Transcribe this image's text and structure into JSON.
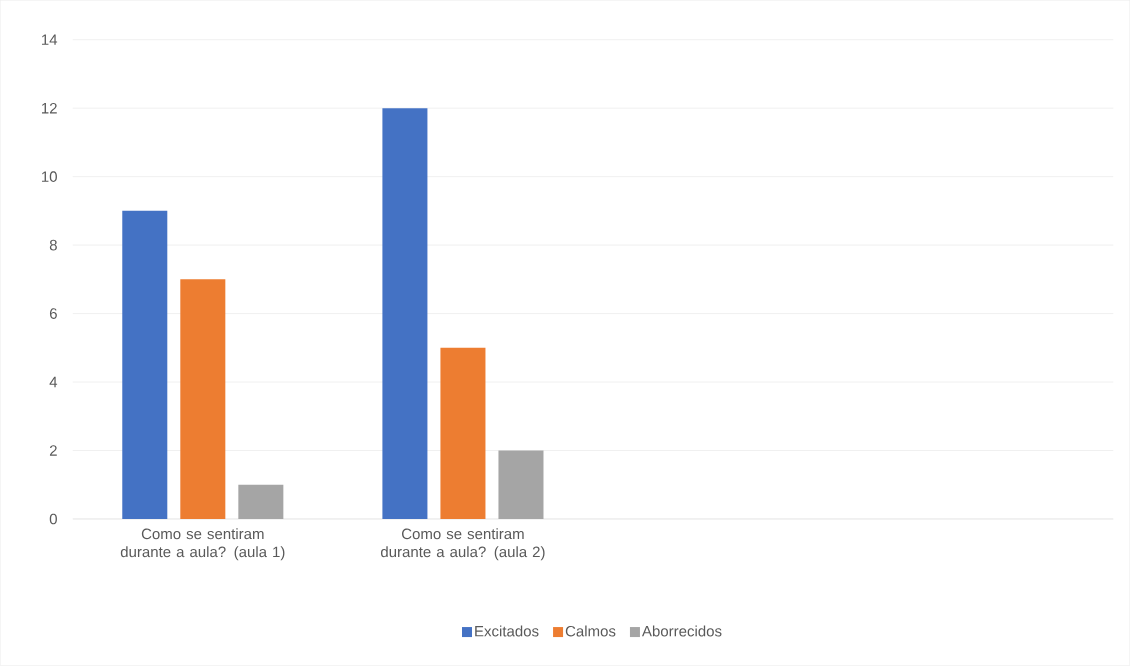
{
  "chart_data": {
    "type": "bar",
    "categories": [
      "Como se sentiram durante a aula? (aula 1)",
      "Como se sentiram durante a aula? (aula 2)",
      null,
      null
    ],
    "series": [
      {
        "name": "Excitados",
        "color": "#4472c4",
        "values": [
          9,
          12,
          null,
          null
        ]
      },
      {
        "name": "Calmos",
        "color": "#ed7d31",
        "values": [
          7,
          5,
          null,
          null
        ]
      },
      {
        "name": "Aborrecidos",
        "color": "#a5a5a5",
        "values": [
          1,
          2,
          null,
          null
        ]
      }
    ],
    "ylim": [
      0,
      14
    ],
    "yticks": [
      0,
      2,
      4,
      6,
      8,
      10,
      12,
      14
    ],
    "grid": "y",
    "legend": "bottom"
  }
}
